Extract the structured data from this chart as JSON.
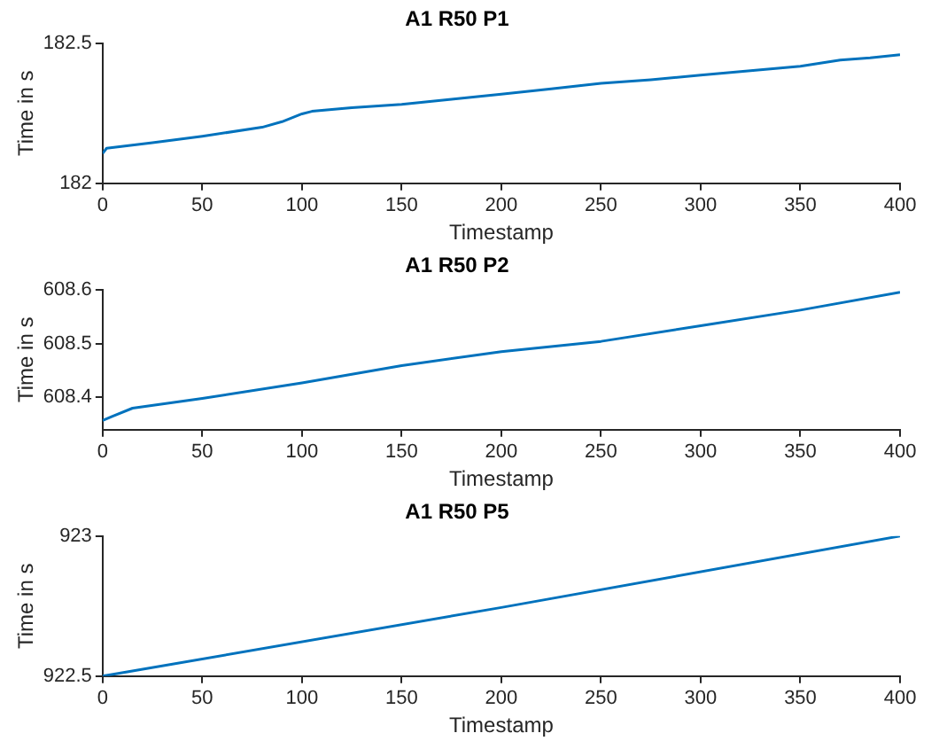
{
  "chart_data": [
    {
      "type": "line",
      "title": "A1 R50 P1",
      "xlabel": "Timestamp",
      "ylabel": "Time in s",
      "xlim": [
        0,
        400
      ],
      "xticks": [
        0,
        50,
        100,
        150,
        200,
        250,
        300,
        350,
        400
      ],
      "ylim": [
        182,
        182.5
      ],
      "yticks": [
        182,
        182.5
      ],
      "grid": false,
      "legend": false,
      "series": [
        {
          "color": "#0072bd",
          "x": [
            0,
            2,
            25,
            50,
            80,
            90,
            100,
            105,
            125,
            150,
            175,
            200,
            225,
            250,
            275,
            300,
            325,
            350,
            370,
            385,
            400
          ],
          "values": [
            182.107,
            182.125,
            182.145,
            182.168,
            182.2,
            182.22,
            182.248,
            182.257,
            182.27,
            182.282,
            182.3,
            182.318,
            182.337,
            182.357,
            182.37,
            182.386,
            182.402,
            182.418,
            182.44,
            182.448,
            182.459
          ]
        }
      ]
    },
    {
      "type": "line",
      "title": "A1 R50 P2",
      "xlabel": "Timestamp",
      "ylabel": "Time in s",
      "xlim": [
        0,
        400
      ],
      "xticks": [
        0,
        50,
        100,
        150,
        200,
        250,
        300,
        350,
        400
      ],
      "ylim": [
        608.34,
        608.6
      ],
      "yticks": [
        608.4,
        608.5,
        608.6
      ],
      "grid": false,
      "legend": false,
      "series": [
        {
          "color": "#0072bd",
          "x": [
            0,
            5,
            15,
            50,
            100,
            150,
            200,
            250,
            300,
            350,
            400
          ],
          "values": [
            608.357,
            608.365,
            608.38,
            608.398,
            608.427,
            608.459,
            608.485,
            608.504,
            608.533,
            608.562,
            608.595
          ]
        }
      ]
    },
    {
      "type": "line",
      "title": "A1 R50 P5",
      "xlabel": "Timestamp",
      "ylabel": "Time in s",
      "xlim": [
        0,
        400
      ],
      "xticks": [
        0,
        50,
        100,
        150,
        200,
        250,
        300,
        350,
        400
      ],
      "ylim": [
        922.5,
        923
      ],
      "yticks": [
        922.5,
        923
      ],
      "grid": false,
      "legend": false,
      "series": [
        {
          "color": "#0072bd",
          "x": [
            0,
            200,
            400
          ],
          "values": [
            922.5,
            922.745,
            923
          ]
        }
      ]
    }
  ]
}
